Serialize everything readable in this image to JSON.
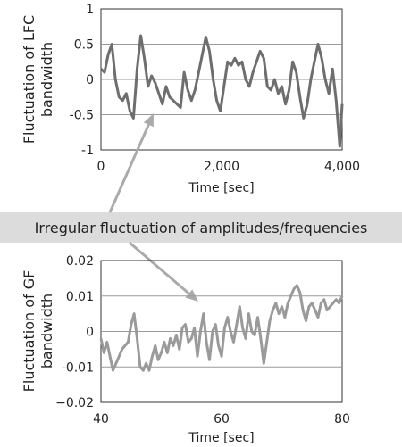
{
  "annotation": {
    "text": "Irregular fluctuation of amplitudes/frequencies",
    "color": "#aaaaaa",
    "banner_bg": "#dcdcdc"
  },
  "chart_data": [
    {
      "type": "line",
      "title": "",
      "xlabel": "Time [sec]",
      "ylabel": "Fluctuation of LFC bandwidth",
      "xlim": [
        0,
        4000
      ],
      "ylim": [
        -1,
        1
      ],
      "xticks": [
        0,
        2000,
        4000
      ],
      "xtick_labels": [
        "0",
        "2,000",
        "4,000"
      ],
      "yticks": [
        -1,
        -0.5,
        0,
        0.5,
        1
      ],
      "ytick_labels": [
        "-1",
        "-0.5",
        "0",
        "0.5",
        "1"
      ],
      "grid": true,
      "line_color": "#6e6e6e",
      "x": [
        0,
        60,
        120,
        180,
        240,
        300,
        360,
        420,
        480,
        540,
        600,
        660,
        720,
        780,
        840,
        900,
        960,
        1020,
        1080,
        1140,
        1200,
        1260,
        1320,
        1380,
        1440,
        1500,
        1560,
        1620,
        1680,
        1740,
        1800,
        1860,
        1920,
        1980,
        2040,
        2100,
        2160,
        2220,
        2280,
        2340,
        2400,
        2460,
        2520,
        2580,
        2640,
        2700,
        2760,
        2820,
        2880,
        2940,
        3000,
        3060,
        3120,
        3180,
        3240,
        3300,
        3360,
        3420,
        3480,
        3540,
        3600,
        3660,
        3720,
        3780,
        3840,
        3900,
        3960,
        4000
      ],
      "y": [
        0.15,
        0.1,
        0.35,
        0.5,
        0.0,
        -0.25,
        -0.3,
        -0.2,
        -0.45,
        -0.55,
        0.15,
        0.62,
        0.3,
        -0.1,
        0.05,
        -0.05,
        -0.2,
        -0.35,
        -0.1,
        -0.25,
        -0.3,
        -0.35,
        -0.4,
        0.1,
        -0.15,
        -0.3,
        -0.15,
        0.1,
        0.35,
        0.6,
        0.4,
        0.0,
        -0.3,
        -0.45,
        -0.1,
        0.25,
        0.2,
        0.3,
        0.2,
        0.25,
        0.0,
        -0.1,
        0.1,
        0.25,
        0.4,
        0.3,
        -0.1,
        -0.15,
        0.0,
        -0.2,
        -0.1,
        -0.35,
        -0.15,
        0.25,
        0.1,
        -0.25,
        -0.55,
        -0.35,
        0.0,
        0.25,
        0.5,
        0.3,
        0.0,
        -0.2,
        0.15,
        -0.3,
        -0.95,
        -0.35
      ]
    },
    {
      "type": "line",
      "title": "",
      "xlabel": "Time [sec]",
      "ylabel": "Fluctuation of GF bandwidth",
      "xlim": [
        40,
        80
      ],
      "ylim": [
        -0.02,
        0.02
      ],
      "xticks": [
        40,
        60,
        80
      ],
      "xtick_labels": [
        "40",
        "60",
        "80"
      ],
      "yticks": [
        -0.02,
        -0.01,
        0,
        0.01,
        0.02
      ],
      "ytick_labels": [
        "−0.02",
        "-0.01",
        "0",
        "0.01",
        "0.02"
      ],
      "grid": true,
      "line_color": "#9a9a9a",
      "x": [
        40,
        40.5,
        41,
        41.5,
        42,
        42.5,
        43,
        43.5,
        44,
        44.5,
        45,
        45.5,
        46,
        46.5,
        47,
        47.5,
        48,
        48.5,
        49,
        49.5,
        50,
        50.5,
        51,
        51.5,
        52,
        52.5,
        53,
        53.5,
        54,
        54.5,
        55,
        55.5,
        56,
        56.5,
        57,
        57.5,
        58,
        58.5,
        59,
        59.5,
        60,
        60.5,
        61,
        61.5,
        62,
        62.5,
        63,
        63.5,
        64,
        64.5,
        65,
        65.5,
        66,
        66.5,
        67,
        67.5,
        68,
        68.5,
        69,
        69.5,
        70,
        70.5,
        71,
        71.5,
        72,
        72.5,
        73,
        73.5,
        74,
        74.5,
        75,
        75.5,
        76,
        76.5,
        77,
        77.5,
        78,
        78.5,
        79,
        79.5,
        80
      ],
      "y": [
        -0.002,
        -0.006,
        -0.003,
        -0.007,
        -0.011,
        -0.009,
        -0.007,
        -0.005,
        -0.004,
        -0.003,
        0.002,
        0.005,
        -0.002,
        -0.01,
        -0.011,
        -0.009,
        -0.011,
        -0.007,
        -0.004,
        -0.008,
        -0.006,
        -0.003,
        -0.006,
        -0.002,
        -0.004,
        -0.001,
        -0.005,
        0.001,
        0.002,
        -0.003,
        -0.002,
        0.001,
        -0.007,
        0.0,
        0.005,
        -0.003,
        -0.008,
        0.0,
        0.002,
        -0.004,
        -0.007,
        0.001,
        0.004,
        0.0,
        -0.003,
        0.002,
        0.007,
        0.001,
        -0.002,
        0.005,
        0.0,
        -0.001,
        0.004,
        -0.002,
        -0.009,
        -0.003,
        0.003,
        0.006,
        0.008,
        0.005,
        0.007,
        0.004,
        0.008,
        0.01,
        0.012,
        0.013,
        0.011,
        0.006,
        0.003,
        0.007,
        0.008,
        0.006,
        0.004,
        0.008,
        0.009,
        0.006,
        0.007,
        0.008,
        0.009,
        0.008,
        0.01
      ]
    }
  ]
}
